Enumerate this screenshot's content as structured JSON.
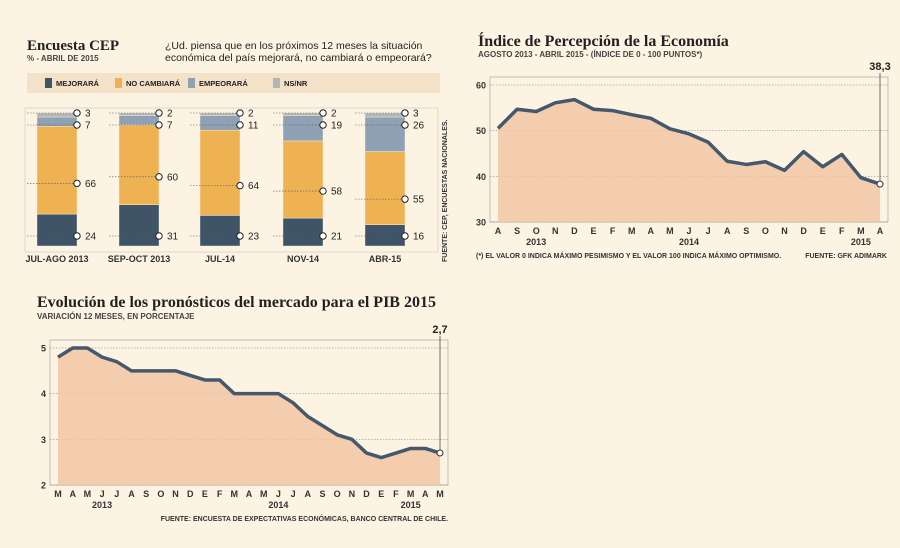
{
  "cep": {
    "title": "Encuesta CEP",
    "subtitle": "% - ABRIL DE 2015",
    "question_line1": "¿Ud. piensa que en los próximos 12 meses la situación",
    "question_line2": "económica del país mejorará, no cambiará o empeorará?",
    "source": "FUENTE: CEP, ENCUESTAS NACIONALES."
  },
  "ipec": {
    "title": "Índice de Percepción de la Economía",
    "subtitle": "AGOSTO 2013 - ABRIL 2015 - (ÍNDICE DE 0 - 100 PUNTOS*)",
    "footnote": "(*) EL VALOR 0 INDICA MÁXIMO PESIMISMO Y EL VALOR 100 INDICA MÁXIMO OPTIMISMO.",
    "source": "FUENTE: GFK ADIMARK",
    "last_label": "38,3"
  },
  "pib": {
    "title": "Evolución de los pronósticos del mercado para el PIB 2015",
    "subtitle": "VARIACIÓN 12 MESES, EN PORCENTAJE",
    "source": "FUENTE: ENCUESTA DE EXPECTATIVAS ECONÓMICAS, BANCO CENTRAL DE CHILE.",
    "last_label": "2,7"
  },
  "colors": {
    "background": "#fdf3e3",
    "mejorara": "#3f5466",
    "no_cambiara": "#efb253",
    "empeorara": "#8fa2b3",
    "nsnr": "#b5b5b5",
    "line": "#44596b",
    "area": "#f2c6a6"
  },
  "chart_data": [
    {
      "type": "bar",
      "stacked": true,
      "title": "Encuesta CEP",
      "categories": [
        "JUL-AGO 2013",
        "SEP-OCT 2013",
        "JUL-14",
        "NOV-14",
        "ABR-15"
      ],
      "series": [
        {
          "name": "MEJORARÁ",
          "values": [
            24,
            31,
            23,
            21,
            16
          ]
        },
        {
          "name": "NO CAMBIARÁ",
          "values": [
            66,
            60,
            64,
            58,
            55
          ]
        },
        {
          "name": "EMPEORARÁ",
          "values": [
            7,
            7,
            11,
            19,
            26
          ]
        },
        {
          "name": "NS/NR",
          "values": [
            3,
            2,
            2,
            2,
            3
          ]
        }
      ],
      "ylim": [
        0,
        100
      ]
    },
    {
      "type": "area",
      "title": "Índice de Percepción de la Economía",
      "x": [
        "A",
        "S",
        "O",
        "N",
        "D",
        "E",
        "F",
        "M",
        "A",
        "M",
        "J",
        "J",
        "A",
        "S",
        "O",
        "N",
        "D",
        "E",
        "F",
        "M",
        "A"
      ],
      "year_labels": [
        {
          "label": "2013",
          "index": 2
        },
        {
          "label": "2014",
          "index": 10
        },
        {
          "label": "2015",
          "index": 19
        }
      ],
      "values": [
        50.5,
        54.7,
        54.2,
        56.1,
        56.8,
        54.7,
        54.4,
        53.5,
        52.7,
        50.4,
        49.3,
        47.5,
        43.3,
        42.6,
        43.2,
        41.3,
        45.4,
        42.1,
        44.8,
        39.7,
        38.3
      ],
      "yticks": [
        30,
        40,
        50,
        60
      ],
      "ylim": [
        30,
        60
      ]
    },
    {
      "type": "area",
      "title": "Evolución de los pronósticos del mercado para el PIB 2015",
      "x": [
        "M",
        "A",
        "M",
        "J",
        "J",
        "A",
        "S",
        "O",
        "N",
        "D",
        "E",
        "F",
        "M",
        "A",
        "M",
        "J",
        "J",
        "A",
        "S",
        "O",
        "N",
        "D",
        "E",
        "F",
        "M",
        "A",
        "M"
      ],
      "year_labels": [
        {
          "label": "2013",
          "index": 3
        },
        {
          "label": "2014",
          "index": 15
        },
        {
          "label": "2015",
          "index": 24
        }
      ],
      "values": [
        4.8,
        5.0,
        5.0,
        4.8,
        4.7,
        4.5,
        4.5,
        4.5,
        4.5,
        4.4,
        4.3,
        4.3,
        4.0,
        4.0,
        4.0,
        4.0,
        3.8,
        3.5,
        3.3,
        3.1,
        3.0,
        2.7,
        2.6,
        2.7,
        2.8,
        2.8,
        2.7
      ],
      "yticks": [
        2,
        3,
        4,
        5
      ],
      "ylim": [
        2,
        5
      ]
    }
  ]
}
